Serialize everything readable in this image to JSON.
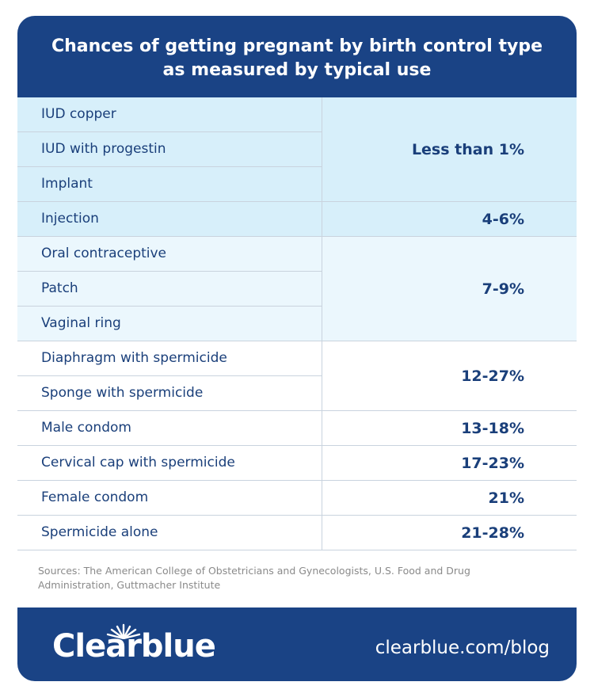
{
  "header": {
    "title_lines": [
      "Chances of getting pregnant by birth control type",
      "as measured by typical use"
    ]
  },
  "table": {
    "groups": [
      {
        "methods": [
          "IUD copper",
          "IUD with progestin",
          "Implant"
        ],
        "rate": "Less than 1%"
      },
      {
        "methods": [
          "Injection"
        ],
        "rate": "4-6%"
      },
      {
        "methods": [
          "Oral contraceptive",
          "Patch",
          "Vaginal ring"
        ],
        "rate": "7-9%"
      },
      {
        "methods": [
          "Diaphragm with spermicide",
          "Sponge with spermicide"
        ],
        "rate": "12-27%"
      },
      {
        "methods": [
          "Male condom"
        ],
        "rate": "13-18%"
      },
      {
        "methods": [
          "Cervical cap with spermicide"
        ],
        "rate": "17-23%"
      },
      {
        "methods": [
          "Female condom"
        ],
        "rate": "21%"
      },
      {
        "methods": [
          "Spermicide alone"
        ],
        "rate": "21-28%"
      }
    ]
  },
  "sources": "Sources: The American College of Obstetricians and Gynecologists, U.S. Food and Drug Administration, Guttmacher Institute",
  "footer": {
    "logo": "Clearblue",
    "url": "clearblue.com/blog"
  }
}
